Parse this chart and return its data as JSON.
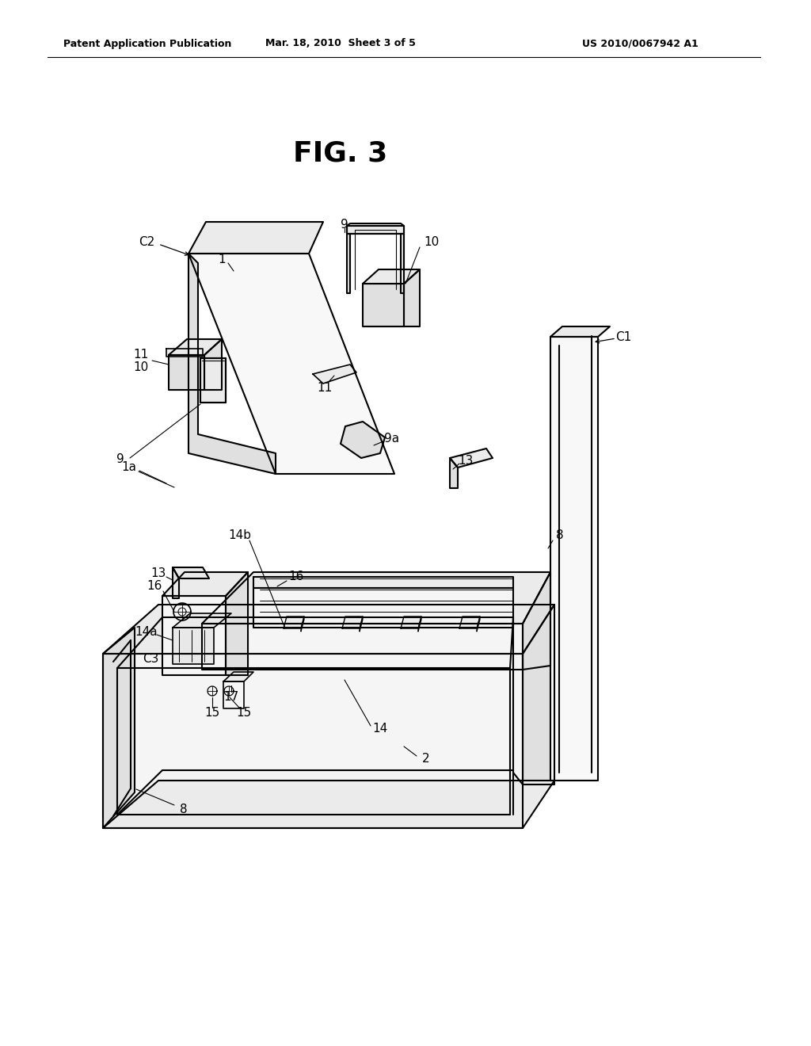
{
  "bg_color": "#ffffff",
  "line_color": "#000000",
  "line_width": 1.5,
  "fig_title": "FIG. 3",
  "header_left": "Patent Application Publication",
  "header_mid": "Mar. 18, 2010  Sheet 3 of 5",
  "header_right": "US 2010/0067942 A1"
}
